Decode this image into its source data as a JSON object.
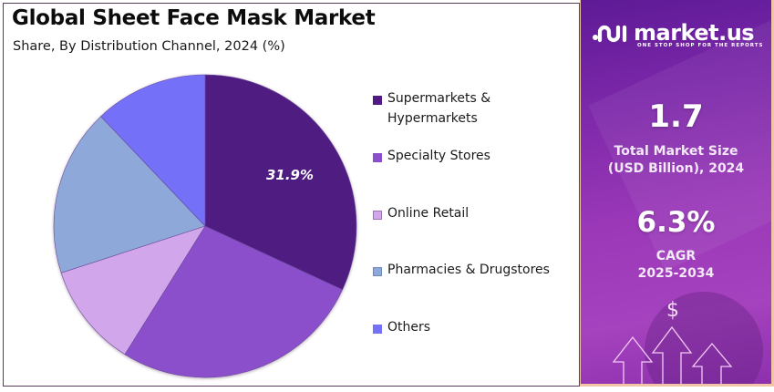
{
  "header": {
    "title": "Global Sheet Face Mask Market",
    "subtitle": "Share, By Distribution Channel, 2024 (%)"
  },
  "legend": {
    "items": [
      {
        "label_line1": "Supermarkets &",
        "label_line2": "Hypermarkets",
        "color": "#4f1a82"
      },
      {
        "label_line1": "Specialty Stores",
        "label_line2": "",
        "color": "#8b4fcc"
      },
      {
        "label_line1": "Online Retail",
        "label_line2": "",
        "color": "#d2a6ea"
      },
      {
        "label_line1": "Pharmacies & Drugstores",
        "label_line2": "",
        "color": "#8ea8da"
      },
      {
        "label_line1": "Others",
        "label_line2": "",
        "color": "#7470f8"
      }
    ]
  },
  "slice_labels": {
    "supermarkets": "31.9%"
  },
  "sidebar": {
    "brand": "market.us",
    "tagline": "ONE STOP SHOP FOR THE REPORTS",
    "market_size_value": "1.7",
    "market_size_label_line1": "Total Market Size",
    "market_size_label_line2": "(USD Billion), 2024",
    "cagr_value": "6.3%",
    "cagr_label_line1": "CAGR",
    "cagr_label_line2": "2025-2034",
    "currency_symbol": "$",
    "colors": {
      "gradient_top": "#5e1a96",
      "gradient_mid": "#9a38b8",
      "border": "#f0c6a6"
    }
  },
  "chart_data": {
    "type": "pie",
    "title": "Global Sheet Face Mask Market",
    "subtitle": "Share, By Distribution Channel, 2024 (%)",
    "categories": [
      "Supermarkets & Hypermarkets",
      "Specialty Stores",
      "Online Retail",
      "Pharmacies & Drugstores",
      "Others"
    ],
    "values": [
      31.9,
      27.0,
      11.1,
      17.9,
      12.1
    ],
    "colors": [
      "#4f1a82",
      "#8b4fcc",
      "#d2a6ea",
      "#8ea8da",
      "#7470f8"
    ],
    "labeled_values": {
      "Supermarkets & Hypermarkets": "31.9%"
    },
    "start_angle_deg": 0,
    "direction": "clockwise",
    "legend_position": "right"
  }
}
